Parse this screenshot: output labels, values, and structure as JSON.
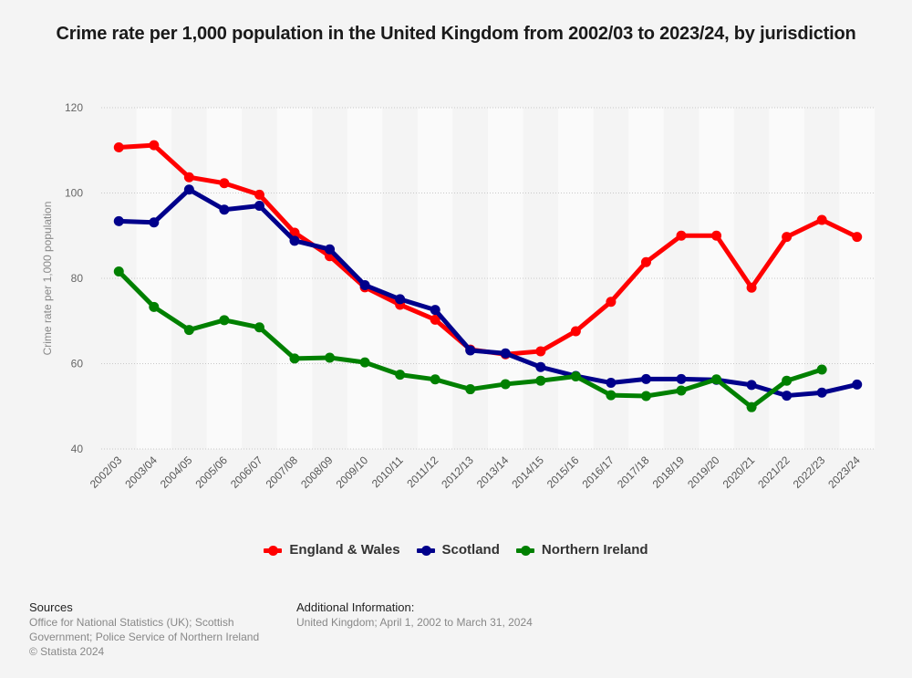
{
  "title": "Crime rate per 1,000 population in the United Kingdom from 2002/03 to 2023/24, by jurisdiction",
  "chart_data": {
    "type": "line",
    "title": "Crime rate per 1,000 population in the United Kingdom from 2002/03 to 2023/24, by jurisdiction",
    "xlabel": "",
    "ylabel": "Crime rate per 1,000 population",
    "ylim": [
      40,
      120
    ],
    "yticks": [
      40,
      60,
      80,
      100,
      120
    ],
    "grid": true,
    "legend_position": "bottom",
    "categories": [
      "2002/03",
      "2003/04",
      "2004/05",
      "2005/06",
      "2006/07",
      "2007/08",
      "2008/09",
      "2009/10",
      "2010/11",
      "2011/12",
      "2012/13",
      "2013/14",
      "2014/15",
      "2015/16",
      "2016/17",
      "2017/18",
      "2018/19",
      "2019/20",
      "2020/21",
      "2021/22",
      "2022/23",
      "2023/24"
    ],
    "series": [
      {
        "name": "England & Wales",
        "color": "#ff0000",
        "values": [
          110.7,
          111.2,
          103.7,
          102.3,
          99.6,
          90.7,
          85.2,
          77.9,
          73.8,
          70.3,
          63.3,
          62.2,
          62.9,
          67.6,
          74.5,
          83.8,
          90.0,
          90.0,
          77.8,
          89.7,
          93.7,
          89.7
        ]
      },
      {
        "name": "Scotland",
        "color": "#00008b",
        "values": [
          93.4,
          93.1,
          100.8,
          96.1,
          97.0,
          88.8,
          86.8,
          78.4,
          75.1,
          72.6,
          63.1,
          62.4,
          59.2,
          57.1,
          55.5,
          56.4,
          56.4,
          56.2,
          55.0,
          52.5,
          53.2,
          55.1
        ]
      },
      {
        "name": "Northern Ireland",
        "color": "#008000",
        "values": [
          81.6,
          73.3,
          67.9,
          70.2,
          68.5,
          61.2,
          61.4,
          60.3,
          57.4,
          56.3,
          54.0,
          55.2,
          56.0,
          57.0,
          52.6,
          52.4,
          53.7,
          56.3,
          49.8,
          56.0,
          58.6,
          null
        ]
      }
    ]
  },
  "footer": {
    "sources_heading": "Sources",
    "sources_line1": "Office for National Statistics (UK); Scottish",
    "sources_line2": "Government; Police Service of Northern Ireland",
    "copyright": "© Statista 2024",
    "additional_heading": "Additional Information:",
    "additional_text": "United Kingdom; April 1, 2002 to March 31, 2024"
  }
}
